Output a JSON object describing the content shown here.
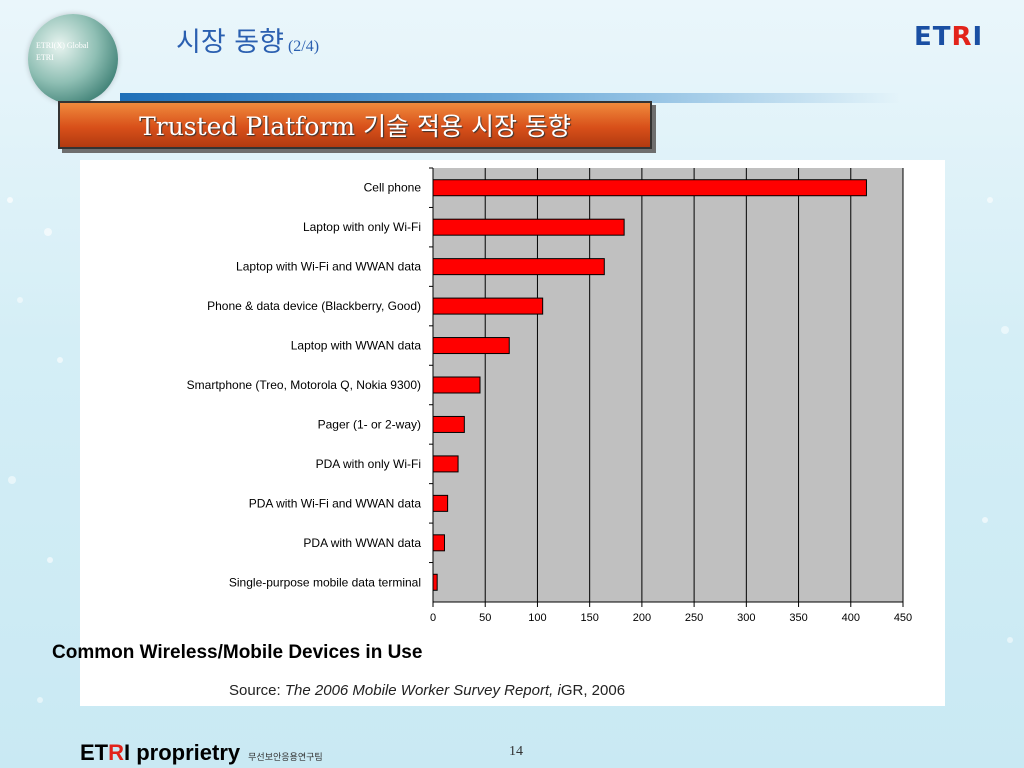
{
  "header": {
    "title": "시장 동향",
    "title_suffix": "(2/4)",
    "logo_prefix": "ET",
    "logo_r": "R",
    "logo_suffix": "I",
    "globe_line1": "ETRI(X) Global",
    "globe_line2": "ETRI"
  },
  "banner": {
    "text": "Trusted Platform 기술 적용 시장 동향"
  },
  "caption": "Common Wireless/Mobile Devices in Use",
  "source": {
    "prefix": "Source: ",
    "title": "The 2006 Mobile Worker Survey Report, ",
    "brand_i": "i",
    "brand_rest": "GR, 2006"
  },
  "footer": {
    "et": "ET",
    "r": "R",
    "i_proprietary": "I proprietry",
    "team": "무선보안응용연구팀",
    "page": "14"
  },
  "colors": {
    "bar": "#ff0000",
    "plot_bg": "#c0c0c0",
    "title": "#2a5fb0",
    "banner": "#d8501a",
    "logo": "#1a4fa3",
    "logo_accent": "#e2231a"
  },
  "chart_data": {
    "type": "bar",
    "orientation": "horizontal",
    "categories": [
      "Cell phone",
      "Laptop with only Wi-Fi",
      "Laptop with Wi-Fi and WWAN data",
      "Phone & data device (Blackberry, Good)",
      "Laptop with WWAN data",
      "Smartphone (Treo, Motorola Q, Nokia 9300)",
      "Pager (1- or 2-way)",
      "PDA with only Wi-Fi",
      "PDA with Wi-Fi and WWAN data",
      "PDA with WWAN data",
      "Single-purpose mobile data terminal"
    ],
    "values": [
      415,
      183,
      164,
      105,
      73,
      45,
      30,
      24,
      14,
      11,
      4
    ],
    "xlim": [
      0,
      450
    ],
    "xticks": [
      0,
      50,
      100,
      150,
      200,
      250,
      300,
      350,
      400,
      450
    ],
    "grid": "vertical",
    "title": "",
    "xlabel": "",
    "ylabel": ""
  }
}
